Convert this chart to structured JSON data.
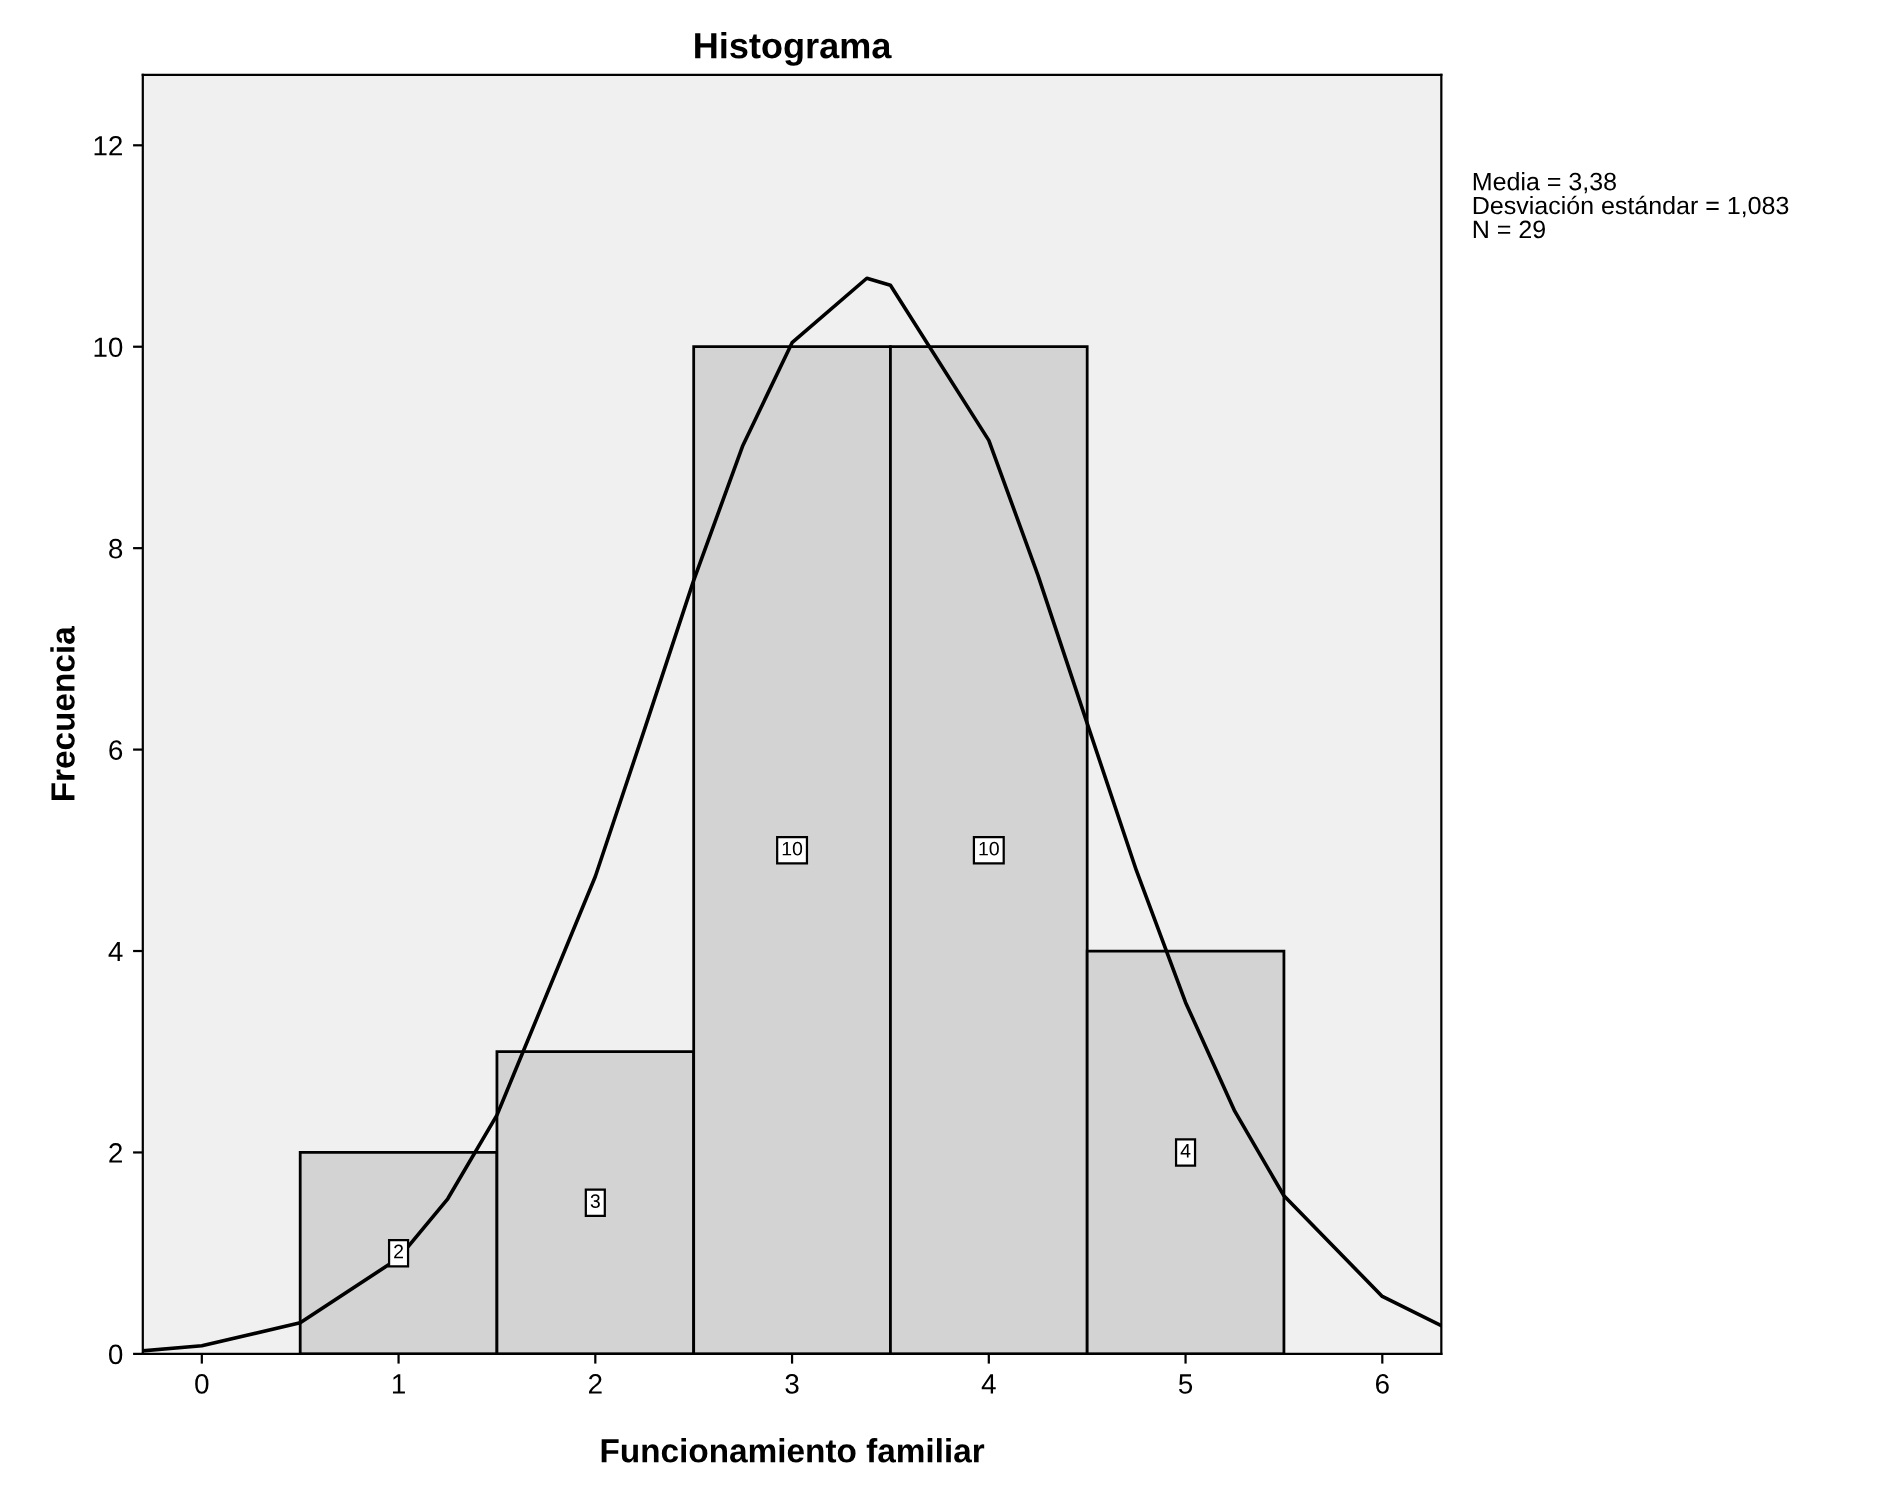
{
  "chart_data": {
    "type": "histogram",
    "title": "Histograma",
    "xlabel": "Funcionamiento familiar",
    "ylabel": "Frecuencia",
    "bins": [
      0.5,
      1.5,
      2.5,
      3.5,
      4.5,
      5.5
    ],
    "values": [
      2,
      3,
      10,
      10,
      4
    ],
    "color": "#d3d3d3",
    "value_labels": [
      "2",
      "3",
      "10",
      "10",
      "4"
    ],
    "series": [
      {
        "type": "line",
        "color": "#000000",
        "x": [
          -0.3,
          0,
          0.5,
          1,
          1.25,
          1.5,
          2,
          2.25,
          2.5,
          2.75,
          3,
          3.38,
          3.5,
          4,
          4.25,
          4.5,
          4.75,
          5,
          5.25,
          5.5,
          6,
          6.3
        ],
        "values": [
          0.03,
          0.08,
          0.31,
          0.95,
          1.54,
          2.37,
          4.74,
          6.2,
          7.68,
          9.02,
          10.04,
          10.68,
          10.61,
          9.07,
          7.73,
          6.26,
          4.8,
          3.49,
          2.41,
          1.57,
          0.57,
          0.28
        ]
      }
    ],
    "xlim": [
      -0.3,
      6.3
    ],
    "ylim": [
      0,
      12.7
    ],
    "xticks": [
      0,
      1,
      2,
      3,
      4,
      5,
      6
    ],
    "yticks": [
      0,
      2,
      4,
      6,
      8,
      10,
      12
    ],
    "grid": false,
    "legend": false,
    "annotations": [
      "Media = 3,38",
      "Desviación estándar = 1,083",
      "N = 29"
    ]
  }
}
